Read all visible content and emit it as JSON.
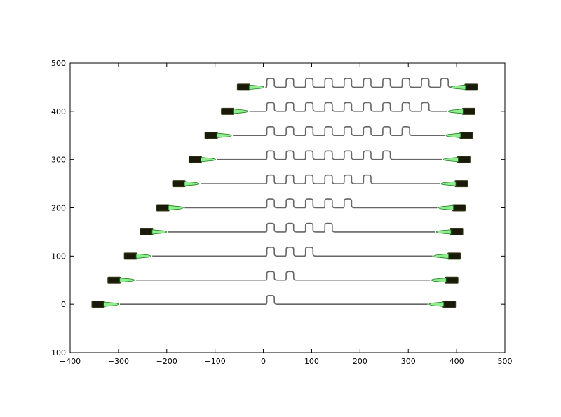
{
  "chart_data": {
    "type": "layout-plot",
    "xlim": [
      -400,
      500
    ],
    "ylim": [
      -100,
      500
    ],
    "x_ticks": [
      -400,
      -300,
      -200,
      -100,
      0,
      100,
      200,
      300,
      400,
      500
    ],
    "y_ticks": [
      -100,
      0,
      100,
      200,
      300,
      400,
      500
    ],
    "x_tick_labels": [
      "−400",
      "−300",
      "−200",
      "−100",
      "0",
      "100",
      "200",
      "300",
      "400",
      "500"
    ],
    "y_tick_labels": [
      "−100",
      "0",
      "100",
      "200",
      "300",
      "400",
      "500"
    ],
    "devices": [
      {
        "y": 0,
        "loops": 1,
        "left_x": -355,
        "right_x": 398
      },
      {
        "y": 50,
        "loops": 2,
        "left_x": -322,
        "right_x": 403
      },
      {
        "y": 100,
        "loops": 3,
        "left_x": -288,
        "right_x": 408
      },
      {
        "y": 150,
        "loops": 4,
        "left_x": -255,
        "right_x": 413
      },
      {
        "y": 200,
        "loops": 5,
        "left_x": -221,
        "right_x": 418
      },
      {
        "y": 250,
        "loops": 6,
        "left_x": -188,
        "right_x": 423
      },
      {
        "y": 300,
        "loops": 7,
        "left_x": -154,
        "right_x": 428
      },
      {
        "y": 350,
        "loops": 8,
        "left_x": -121,
        "right_x": 433
      },
      {
        "y": 400,
        "loops": 9,
        "left_x": -87,
        "right_x": 438
      },
      {
        "y": 450,
        "loops": 10,
        "left_x": -54,
        "right_x": 443
      }
    ],
    "loop_period": 40,
    "loop_height": 18,
    "meander_start_x": 0,
    "colors": {
      "waveguide": "#666666",
      "taper": "#90ee90",
      "taper_edge": "#1a7a1a",
      "pad": "#1a1a0a"
    }
  }
}
